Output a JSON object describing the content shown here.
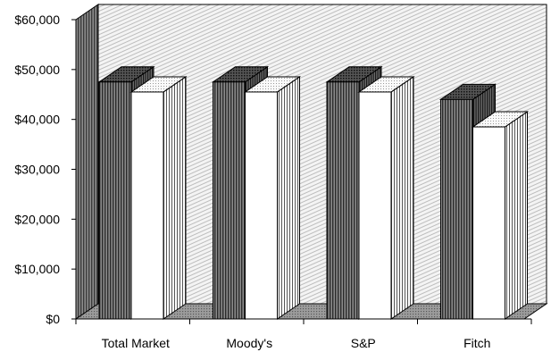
{
  "chart_data": {
    "type": "bar",
    "categories": [
      "Total Market",
      "Moody's",
      "S&P",
      "Fitch"
    ],
    "series": [
      {
        "values": [
          47500,
          47500,
          47500,
          44000
        ]
      },
      {
        "values": [
          45500,
          45500,
          45500,
          38500
        ]
      }
    ],
    "y_ticks": [
      "$0",
      "$10,000",
      "$20,000",
      "$30,000",
      "$40,000",
      "$50,000",
      "$60,000"
    ],
    "ylim": [
      0,
      60000
    ],
    "title": "",
    "xlabel": "",
    "ylabel": "",
    "legend": "none",
    "grid": false,
    "style": "3d",
    "colors": {
      "dark_bar": "#7a7a7a",
      "light_bar": "#ffffff",
      "wall": "#e8e8e8",
      "floor": "#9a9a9a"
    }
  }
}
